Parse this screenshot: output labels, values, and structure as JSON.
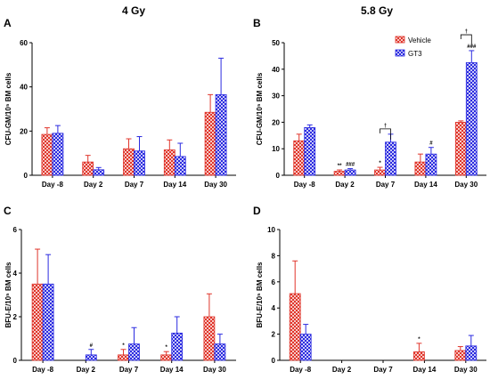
{
  "figure": {
    "col_titles": [
      "4 Gy",
      "5.8 Gy"
    ],
    "legend": [
      {
        "name": "Vehicle",
        "color": "#e0352b"
      },
      {
        "name": "GT3",
        "color": "#2b2be0"
      }
    ],
    "colors": {
      "vehicle": "#e0352b",
      "gt3": "#2b2be0"
    }
  },
  "chart_data": [
    {
      "panel": "A",
      "type": "bar",
      "title": "4 Gy",
      "ylabel": "CFU-GM/10⁵ BM cells",
      "categories": [
        "Day -8",
        "Day 2",
        "Day 7",
        "Day 14",
        "Day 30"
      ],
      "ylim": [
        0,
        60
      ],
      "yticks": [
        0,
        20,
        40,
        60
      ],
      "series": [
        {
          "name": "Vehicle",
          "values": [
            18.5,
            6,
            12,
            11.5,
            28.5
          ],
          "errors": [
            3,
            3,
            4.5,
            4.5,
            8
          ]
        },
        {
          "name": "GT3",
          "values": [
            19,
            2.5,
            11,
            8.5,
            36.5
          ],
          "errors": [
            3.5,
            1,
            6.5,
            6,
            16.5
          ]
        }
      ],
      "annotations": []
    },
    {
      "panel": "B",
      "type": "bar",
      "title": "5.8 Gy",
      "ylabel": "CFU-GM/10⁵ BM cells",
      "categories": [
        "Day -8",
        "Day 2",
        "Day 7",
        "Day 14",
        "Day 30"
      ],
      "ylim": [
        0,
        50
      ],
      "yticks": [
        0,
        10,
        20,
        30,
        40,
        50
      ],
      "legend_position": "top-right",
      "series": [
        {
          "name": "Vehicle",
          "values": [
            13,
            1.5,
            2,
            5,
            20
          ],
          "errors": [
            2.5,
            0.5,
            1,
            3,
            0.5
          ]
        },
        {
          "name": "GT3",
          "values": [
            18,
            2,
            12.5,
            8,
            42.5
          ],
          "errors": [
            1,
            0.5,
            3,
            2.5,
            4.5
          ]
        }
      ],
      "annotations": [
        {
          "cat": 1,
          "series": 0,
          "text": "**"
        },
        {
          "cat": 1,
          "series": 1,
          "text": "###"
        },
        {
          "cat": 2,
          "series": 0,
          "text": "*"
        },
        {
          "cat": 3,
          "series": 1,
          "text": "#"
        },
        {
          "cat": 4,
          "series": 1,
          "text": "###"
        }
      ],
      "brackets": [
        {
          "cat": 2,
          "text": "†",
          "y": 17.5
        },
        {
          "cat": 4,
          "text": "†",
          "y": 53
        }
      ]
    },
    {
      "panel": "C",
      "type": "bar",
      "title": "",
      "ylabel": "BFU-E/10⁵ BM cells",
      "categories": [
        "Day -8",
        "Day 2",
        "Day 7",
        "Day 14",
        "Day 30"
      ],
      "ylim": [
        0,
        6
      ],
      "yticks": [
        0,
        2,
        4,
        6
      ],
      "series": [
        {
          "name": "Vehicle",
          "values": [
            3.5,
            0,
            0.25,
            0.25,
            2
          ],
          "errors": [
            1.6,
            0,
            0.25,
            0.15,
            1.05
          ]
        },
        {
          "name": "GT3",
          "values": [
            3.5,
            0.25,
            0.75,
            1.25,
            0.75
          ],
          "errors": [
            1.35,
            0.25,
            0.75,
            0.75,
            0.45
          ]
        }
      ],
      "annotations": [
        {
          "cat": 1,
          "series": 1,
          "text": "#"
        },
        {
          "cat": 2,
          "series": 0,
          "text": "*"
        },
        {
          "cat": 3,
          "series": 0,
          "text": "*"
        }
      ]
    },
    {
      "panel": "D",
      "type": "bar",
      "title": "",
      "ylabel": "BFU-E/10⁵ BM cells",
      "categories": [
        "Day -8",
        "Day 2",
        "Day 7",
        "Day 14",
        "Day 30"
      ],
      "ylim": [
        0,
        10
      ],
      "yticks": [
        0,
        2,
        4,
        6,
        8,
        10
      ],
      "series": [
        {
          "name": "Vehicle",
          "values": [
            5.1,
            0,
            0,
            0.65,
            0.75
          ],
          "errors": [
            2.5,
            0,
            0,
            0.65,
            0.3
          ]
        },
        {
          "name": "GT3",
          "values": [
            2,
            0,
            0,
            0,
            1.1
          ],
          "errors": [
            0.75,
            0,
            0,
            0,
            0.8
          ]
        }
      ],
      "annotations": [
        {
          "cat": 3,
          "series": 0,
          "text": "*"
        }
      ]
    }
  ]
}
